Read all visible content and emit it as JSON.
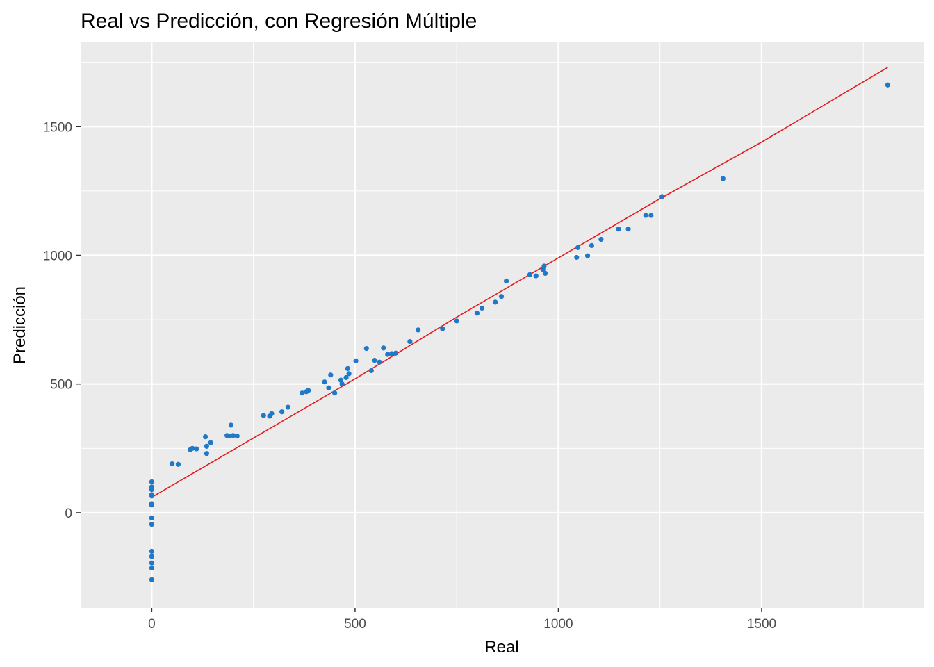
{
  "chart_data": {
    "type": "scatter",
    "title": "Real vs Predicción, con Regresión Múltiple",
    "xlabel": "Real",
    "ylabel": "Predicción",
    "xlim": [
      -175,
      1900
    ],
    "ylim": [
      -370,
      1830
    ],
    "x_ticks": [
      0,
      500,
      1000,
      1500
    ],
    "x_tick_labels": [
      "0",
      "500",
      "1000",
      "1500"
    ],
    "y_ticks": [
      0,
      500,
      1000,
      1500
    ],
    "y_tick_labels": [
      "0",
      "500",
      "1000",
      "1500"
    ],
    "grid": true,
    "legend": "none",
    "colors": {
      "panel_bg": "#ebebeb",
      "grid": "#ffffff",
      "points": "#1f78c8",
      "line": "#e41a1c",
      "tick_mark": "#333333"
    },
    "series": [
      {
        "type": "scatter",
        "points": [
          [
            0,
            120
          ],
          [
            0,
            100
          ],
          [
            0,
            90
          ],
          [
            0,
            70
          ],
          [
            0,
            65
          ],
          [
            0,
            35
          ],
          [
            0,
            30
          ],
          [
            0,
            -20
          ],
          [
            0,
            -45
          ],
          [
            0,
            -150
          ],
          [
            0,
            -170
          ],
          [
            0,
            -195
          ],
          [
            0,
            -215
          ],
          [
            0,
            -260
          ],
          [
            50,
            190
          ],
          [
            65,
            188
          ],
          [
            95,
            245
          ],
          [
            100,
            250
          ],
          [
            110,
            248
          ],
          [
            132,
            295
          ],
          [
            135,
            258
          ],
          [
            135,
            230
          ],
          [
            145,
            272
          ],
          [
            185,
            300
          ],
          [
            190,
            298
          ],
          [
            195,
            340
          ],
          [
            200,
            300
          ],
          [
            210,
            298
          ],
          [
            275,
            378
          ],
          [
            290,
            375
          ],
          [
            295,
            385
          ],
          [
            320,
            392
          ],
          [
            335,
            410
          ],
          [
            370,
            465
          ],
          [
            380,
            470
          ],
          [
            385,
            475
          ],
          [
            425,
            508
          ],
          [
            435,
            485
          ],
          [
            440,
            535
          ],
          [
            450,
            465
          ],
          [
            465,
            515
          ],
          [
            468,
            500
          ],
          [
            478,
            525
          ],
          [
            482,
            560
          ],
          [
            485,
            540
          ],
          [
            502,
            590
          ],
          [
            528,
            638
          ],
          [
            540,
            552
          ],
          [
            548,
            592
          ],
          [
            560,
            585
          ],
          [
            570,
            640
          ],
          [
            580,
            615
          ],
          [
            590,
            618
          ],
          [
            600,
            620
          ],
          [
            635,
            665
          ],
          [
            655,
            710
          ],
          [
            715,
            715
          ],
          [
            750,
            745
          ],
          [
            800,
            775
          ],
          [
            812,
            795
          ],
          [
            845,
            818
          ],
          [
            860,
            840
          ],
          [
            872,
            900
          ],
          [
            930,
            925
          ],
          [
            945,
            920
          ],
          [
            962,
            945
          ],
          [
            965,
            958
          ],
          [
            968,
            930
          ],
          [
            1045,
            992
          ],
          [
            1048,
            1030
          ],
          [
            1072,
            998
          ],
          [
            1082,
            1038
          ],
          [
            1105,
            1062
          ],
          [
            1148,
            1102
          ],
          [
            1172,
            1102
          ],
          [
            1215,
            1155
          ],
          [
            1228,
            1155
          ],
          [
            1255,
            1228
          ],
          [
            1405,
            1298
          ],
          [
            1810,
            1662
          ]
        ]
      },
      {
        "type": "line",
        "points": [
          [
            0,
            60
          ],
          [
            250,
            290
          ],
          [
            500,
            520
          ],
          [
            750,
            760
          ],
          [
            1000,
            990
          ],
          [
            1250,
            1220
          ],
          [
            1500,
            1440
          ],
          [
            1810,
            1730
          ]
        ]
      }
    ]
  }
}
